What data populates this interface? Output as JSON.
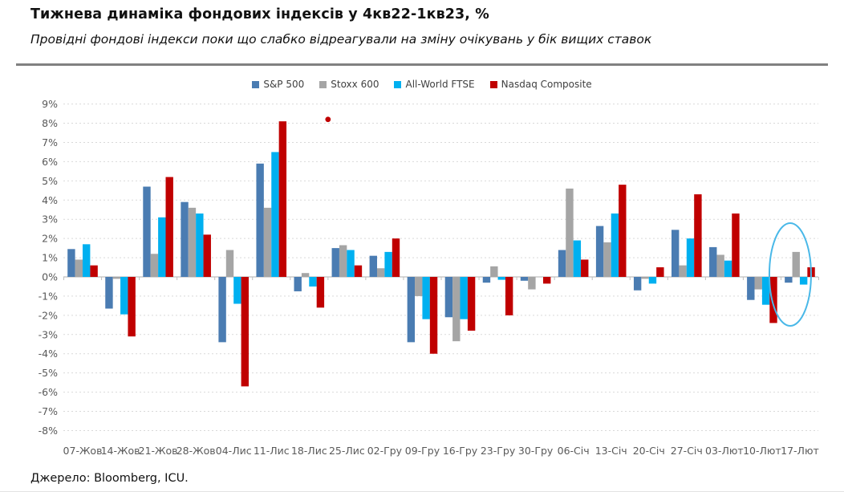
{
  "header": {
    "title": "Тижнева динаміка фондових індексів у 4кв22-1кв23, %",
    "subtitle": "Провідні фондові індекси поки що слабко відреагували на зміну очікувань у бік вищих ставок"
  },
  "source": "Джерело: Bloomberg, ICU.",
  "colors": {
    "sp500": "#4A7CB2",
    "stoxx600": "#A5A5A5",
    "ftse": "#00B0F0",
    "nasdaq": "#C00000",
    "gridline": "#D9D9D9",
    "axis_line": "#BFBFBF",
    "axis_text": "#595959",
    "highlight_ellipse": "#49B8E8"
  },
  "chart_data": {
    "type": "bar",
    "title": "Тижнева динаміка фондових індексів у 4кв22-1кв23, %",
    "xlabel": "",
    "ylabel": "",
    "ylim": [
      -8,
      9
    ],
    "ytick_step": 1,
    "ytick_format": "percent",
    "grid": "horizontal-dotted",
    "legend_position": "top-center",
    "categories": [
      "07-Жов",
      "14-Жов",
      "21-Жов",
      "28-Жов",
      "04-Лис",
      "11-Лис",
      "18-Лис",
      "25-Лис",
      "02-Гру",
      "09-Гру",
      "16-Гру",
      "23-Гру",
      "30-Гру",
      "06-Січ",
      "13-Січ",
      "20-Січ",
      "27-Січ",
      "03-Лют",
      "10-Лют",
      "17-Лют"
    ],
    "series": [
      {
        "name": "S&P 500",
        "color": "#4A7CB2",
        "values": [
          1.45,
          -1.65,
          4.7,
          3.9,
          -3.4,
          5.9,
          -0.75,
          1.5,
          1.1,
          -3.4,
          -2.1,
          -0.3,
          -0.2,
          1.4,
          2.65,
          -0.7,
          2.45,
          1.55,
          -1.2,
          -0.3
        ]
      },
      {
        "name": "Stoxx 600",
        "color": "#A5A5A5",
        "values": [
          0.9,
          -0.1,
          1.2,
          3.6,
          1.4,
          3.6,
          0.2,
          1.65,
          0.45,
          -1.0,
          -3.35,
          0.55,
          -0.65,
          4.6,
          1.8,
          -0.1,
          0.6,
          1.15,
          -0.65,
          1.3
        ]
      },
      {
        "name": "All-World FTSE",
        "color": "#00B0F0",
        "values": [
          1.7,
          -1.95,
          3.1,
          3.3,
          -1.4,
          6.5,
          -0.5,
          1.4,
          1.3,
          -2.2,
          -2.2,
          -0.15,
          0.0,
          1.9,
          3.3,
          -0.35,
          2.0,
          0.85,
          -1.45,
          -0.4
        ]
      },
      {
        "name": "Nasdaq Composite",
        "color": "#C00000",
        "values": [
          0.6,
          -3.1,
          5.2,
          2.2,
          -5.7,
          8.1,
          -1.6,
          0.6,
          2.0,
          -4.0,
          -2.8,
          -2.0,
          -0.35,
          0.9,
          4.8,
          0.5,
          4.3,
          3.3,
          -2.4,
          0.5
        ]
      }
    ],
    "annotations": {
      "outlier_dot": {
        "series": "Nasdaq Composite",
        "between_categories": [
          "18-Лис",
          "25-Лис"
        ],
        "value": 8.2,
        "color": "#C00000"
      },
      "highlight_ellipse": {
        "category": "17-Лют",
        "color": "#49B8E8"
      }
    }
  }
}
